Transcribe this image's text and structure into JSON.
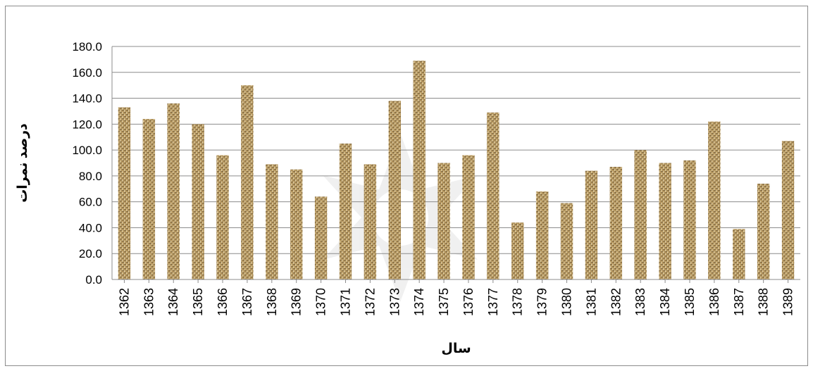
{
  "chart_data": {
    "type": "bar",
    "title": "",
    "xlabel": "سال",
    "ylabel": "درصد نمرات",
    "ylim": [
      0,
      180
    ],
    "y_ticks": [
      "0.0",
      "20.0",
      "40.0",
      "60.0",
      "80.0",
      "100.0",
      "120.0",
      "140.0",
      "160.0",
      "180.0"
    ],
    "categories": [
      "1362",
      "1363",
      "1364",
      "1365",
      "1366",
      "1367",
      "1368",
      "1369",
      "1370",
      "1371",
      "1372",
      "1373",
      "1374",
      "1375",
      "1376",
      "1377",
      "1378",
      "1379",
      "1380",
      "1381",
      "1382",
      "1383",
      "1384",
      "1385",
      "1386",
      "1387",
      "1388",
      "1389"
    ],
    "values": [
      133,
      124,
      136,
      120,
      96,
      150,
      89,
      85,
      64,
      105,
      89,
      138,
      169,
      90,
      96,
      129,
      44,
      68,
      59,
      84,
      87,
      100,
      90,
      92,
      122,
      39,
      74,
      107
    ],
    "grid": true,
    "legend": "none",
    "bar_color": "#b89a63",
    "bar_pattern_color": "#6e5634"
  }
}
